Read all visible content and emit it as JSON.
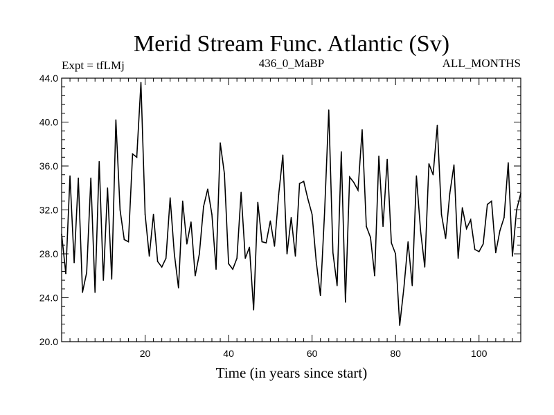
{
  "chart_data": {
    "type": "line",
    "title": "Merid Stream Func. Atlantic (Sv)",
    "subtitle_left": "Expt = tfLMj",
    "subtitle_center": "436_0_MaBP",
    "subtitle_right": "ALL_MONTHS",
    "xlabel": "Time (in years since start)",
    "ylabel": "",
    "xlim": [
      0,
      110
    ],
    "ylim": [
      20.0,
      44.0
    ],
    "x_ticks": [
      20,
      40,
      60,
      80,
      100
    ],
    "x_tick_labels": [
      "20",
      "40",
      "60",
      "80",
      "100"
    ],
    "x_minor_step": 2,
    "y_ticks": [
      20.0,
      24.0,
      28.0,
      32.0,
      36.0,
      40.0,
      44.0
    ],
    "y_tick_labels": [
      "20.0",
      "24.0",
      "28.0",
      "32.0",
      "36.0",
      "40.0",
      "44.0"
    ],
    "y_minor_step": 0.8,
    "grid": false,
    "series": [
      {
        "name": "Merid Stream Func. Atlantic",
        "color": "#000000",
        "x": [
          0,
          1,
          2,
          3,
          4,
          5,
          6,
          7,
          8,
          9,
          10,
          11,
          12,
          13,
          14,
          15,
          16,
          17,
          18,
          19,
          20,
          21,
          22,
          23,
          24,
          25,
          26,
          27,
          28,
          29,
          30,
          31,
          32,
          33,
          34,
          35,
          36,
          37,
          38,
          39,
          40,
          41,
          42,
          43,
          44,
          45,
          46,
          47,
          48,
          49,
          50,
          51,
          52,
          53,
          54,
          55,
          56,
          57,
          58,
          59,
          60,
          61,
          62,
          63,
          64,
          65,
          66,
          67,
          68,
          69,
          70,
          71,
          72,
          73,
          74,
          75,
          76,
          77,
          78,
          79,
          80,
          81,
          82,
          83,
          84,
          85,
          86,
          87,
          88,
          89,
          90,
          91,
          92,
          93,
          94,
          95,
          96,
          97,
          98,
          99,
          100,
          101,
          102,
          103,
          104,
          105,
          106,
          107,
          108,
          109,
          110
        ],
        "values": [
          29.8,
          26.2,
          35.1,
          27.2,
          34.9,
          24.5,
          26.3,
          34.9,
          24.5,
          36.4,
          25.6,
          34.0,
          25.7,
          40.2,
          32.0,
          29.3,
          29.1,
          37.1,
          36.8,
          43.6,
          31.6,
          27.8,
          31.6,
          27.3,
          26.8,
          27.6,
          33.1,
          28.0,
          24.9,
          32.8,
          28.9,
          30.9,
          26.0,
          28.0,
          32.3,
          33.9,
          31.6,
          26.6,
          38.1,
          35.3,
          27.1,
          26.6,
          27.6,
          33.6,
          27.6,
          28.6,
          22.9,
          32.7,
          29.1,
          29.0,
          31.0,
          28.7,
          33.4,
          37.0,
          28.0,
          31.3,
          27.8,
          34.4,
          34.6,
          33.0,
          31.6,
          27.3,
          24.2,
          31.8,
          41.1,
          28.1,
          25.1,
          37.3,
          23.6,
          35.0,
          34.5,
          33.8,
          39.3,
          30.5,
          29.5,
          26.0,
          36.9,
          30.5,
          36.6,
          29.0,
          28.0,
          21.5,
          24.9,
          29.1,
          25.1,
          35.1,
          30.1,
          26.8,
          36.2,
          35.2,
          39.7,
          31.6,
          29.4,
          33.5,
          36.1,
          27.6,
          32.2,
          30.3,
          31.1,
          28.4,
          28.2,
          28.9,
          32.5,
          32.8,
          28.1,
          30.1,
          31.3,
          36.3,
          27.8,
          32.0,
          33.5
        ]
      }
    ]
  }
}
